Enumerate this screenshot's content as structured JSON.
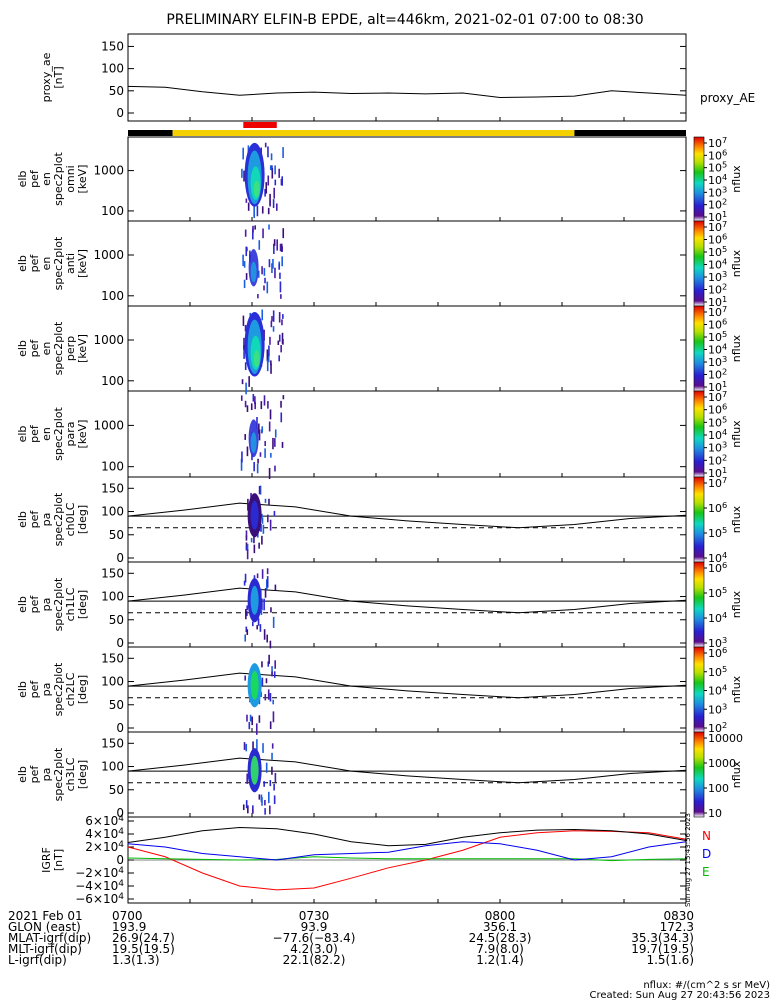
{
  "title": "PRELIMINARY ELFIN-B EPDE, alt=446km, 2021-02-01 07:00 to 08:30",
  "colors": {
    "status_black": "#000000",
    "status_yellow": "#f5d000",
    "science_red": "#ee0000",
    "igrf_n": "#ff0000",
    "igrf_e": "#00bb00",
    "igrf_d": "#0000ee"
  },
  "status_bar": {
    "description": "orbit/science-zone bar",
    "segments_hours": [
      [
        7.0,
        7.12,
        "black"
      ],
      [
        7.12,
        8.2,
        "yellow"
      ],
      [
        8.2,
        8.5,
        "black"
      ]
    ],
    "science_window": [
      7.31,
      7.4
    ]
  },
  "panels": [
    {
      "id": "ae",
      "ylabel": [
        "proxy_ae",
        "[nT]"
      ],
      "right_label": "proxy_AE",
      "yticks": [
        "150",
        "100",
        "50",
        "0"
      ]
    },
    {
      "id": "omni",
      "ylabel": [
        "elb",
        "pef",
        "en",
        "spec2plot",
        "omni",
        "[keV]"
      ],
      "yticks": [
        "1000",
        "100"
      ],
      "colorbar": {
        "ticks": [
          "10^7",
          "10^6",
          "10^5",
          "10^4",
          "10^3",
          "10^2",
          "10^1"
        ],
        "label": "nflux"
      }
    },
    {
      "id": "anti",
      "ylabel": [
        "elb",
        "pef",
        "en",
        "spec2plot",
        "anti",
        "[keV]"
      ],
      "yticks": [
        "1000",
        "100"
      ],
      "colorbar": {
        "ticks": [
          "10^7",
          "10^6",
          "10^5",
          "10^4",
          "10^3",
          "10^2",
          "10^1"
        ],
        "label": "nflux"
      }
    },
    {
      "id": "perp",
      "ylabel": [
        "elb",
        "pef",
        "en",
        "spec2plot",
        "perp",
        "[keV]"
      ],
      "yticks": [
        "1000",
        "100"
      ],
      "colorbar": {
        "ticks": [
          "10^7",
          "10^6",
          "10^5",
          "10^4",
          "10^3",
          "10^2",
          "10^1"
        ],
        "label": "nflux"
      }
    },
    {
      "id": "para",
      "ylabel": [
        "elb",
        "pef",
        "en",
        "spec2plot",
        "para",
        "[keV]"
      ],
      "yticks": [
        "1000",
        "100"
      ],
      "colorbar": {
        "ticks": [
          "10^7",
          "10^6",
          "10^5",
          "10^4",
          "10^3",
          "10^2",
          "10^1"
        ],
        "label": "nflux"
      }
    },
    {
      "id": "ch0",
      "ylabel": [
        "elb",
        "pef",
        "pa",
        "spec2plot",
        "ch0LC",
        "[deg]"
      ],
      "yticks": [
        "150",
        "100",
        "50",
        "0"
      ],
      "colorbar": {
        "ticks": [
          "10^7",
          "10^6",
          "10^5",
          "10^4"
        ],
        "label": "nflux"
      }
    },
    {
      "id": "ch1",
      "ylabel": [
        "elb",
        "pef",
        "pa",
        "spec2plot",
        "ch1LC",
        "[deg]"
      ],
      "yticks": [
        "150",
        "100",
        "50",
        "0"
      ],
      "colorbar": {
        "ticks": [
          "10^6",
          "10^5",
          "10^4",
          "10^3"
        ],
        "label": "nflux"
      }
    },
    {
      "id": "ch2",
      "ylabel": [
        "elb",
        "pef",
        "pa",
        "spec2plot",
        "ch2LC",
        "[deg]"
      ],
      "yticks": [
        "150",
        "100",
        "50",
        "0"
      ],
      "colorbar": {
        "ticks": [
          "10^6",
          "10^5",
          "10^4",
          "10^3",
          "10^2"
        ],
        "label": "nflux"
      }
    },
    {
      "id": "ch3",
      "ylabel": [
        "elb",
        "pef",
        "pa",
        "spec2plot",
        "ch3LC",
        "[deg]"
      ],
      "yticks": [
        "150",
        "100",
        "50",
        "0"
      ],
      "colorbar": {
        "ticks": [
          "10000",
          "1000",
          "100",
          "10"
        ],
        "label": "nflux"
      }
    },
    {
      "id": "igrf",
      "ylabel": [
        "IGRF",
        "[nT]"
      ],
      "yticks": [
        "6×10^4",
        "4×10^4",
        "2×10^4",
        "0",
        "−2×10^4",
        "−4×10^4",
        "−6×10^4"
      ],
      "legend": [
        "N",
        "D",
        "E"
      ]
    }
  ],
  "chart_data": {
    "type": "line",
    "x_unit": "UT hours",
    "xlim": [
      7.0,
      8.5
    ],
    "series": [
      {
        "name": "proxy_AE",
        "x": [
          7.0,
          7.1,
          7.2,
          7.3,
          7.4,
          7.5,
          7.6,
          7.7,
          7.8,
          7.9,
          8.0,
          8.1,
          8.2,
          8.3,
          8.4,
          8.5
        ],
        "values": [
          60,
          58,
          48,
          40,
          45,
          47,
          44,
          45,
          43,
          45,
          35,
          36,
          38,
          50,
          45,
          40
        ]
      },
      {
        "name": "N",
        "x": [
          7.0,
          7.1,
          7.2,
          7.3,
          7.4,
          7.5,
          7.6,
          7.7,
          7.8,
          7.9,
          8.0,
          8.1,
          8.2,
          8.3,
          8.4,
          8.5
        ],
        "values": [
          20000,
          5000,
          -20000,
          -40000,
          -46000,
          -43000,
          -28000,
          -12000,
          0,
          15000,
          35000,
          42000,
          45000,
          44000,
          42000,
          32000
        ]
      },
      {
        "name": "E",
        "x": [
          7.0,
          7.1,
          7.2,
          7.3,
          7.4,
          7.5,
          7.6,
          7.7,
          7.8,
          7.9,
          8.0,
          8.1,
          8.2,
          8.3,
          8.4,
          8.5
        ],
        "values": [
          3000,
          2000,
          1000,
          0,
          1000,
          5000,
          3000,
          2000,
          2000,
          2000,
          2000,
          2000,
          2000,
          -1000,
          1000,
          2000
        ]
      },
      {
        "name": "D",
        "x": [
          7.0,
          7.1,
          7.2,
          7.3,
          7.4,
          7.5,
          7.6,
          7.7,
          7.8,
          7.9,
          8.0,
          8.1,
          8.2,
          8.3,
          8.4,
          8.5
        ],
        "values": [
          25000,
          20000,
          10000,
          5000,
          0,
          8000,
          10000,
          12000,
          22000,
          28000,
          25000,
          15000,
          0,
          5000,
          20000,
          28000
        ]
      },
      {
        "name": "|B|",
        "x": [
          7.0,
          7.1,
          7.2,
          7.3,
          7.4,
          7.5,
          7.6,
          7.7,
          7.8,
          7.9,
          8.0,
          8.1,
          8.2,
          8.3,
          8.4,
          8.5
        ],
        "values": [
          27000,
          35000,
          45000,
          50000,
          48000,
          40000,
          28000,
          22000,
          24000,
          35000,
          42000,
          46000,
          47000,
          45000,
          40000,
          30000
        ]
      }
    ],
    "pitch_angle_lines": {
      "solid_trend_deg": [
        90,
        103,
        118,
        110,
        90,
        80,
        72,
        65,
        72,
        85,
        92
      ],
      "loss_cone_deg": 65,
      "center_deg": 90
    }
  },
  "footer": {
    "rows": [
      {
        "label": "2021 Feb 01",
        "values": [
          "0700",
          "0730",
          "0800",
          "0830"
        ]
      },
      {
        "label": "GLON (east)",
        "values": [
          "193.9",
          "93.9",
          "356.1",
          "172.3"
        ]
      },
      {
        "label": "MLAT-igrf(dip)",
        "values": [
          "26.9(24.7)",
          "−77.6(−83.4)",
          "24.5(28.3)",
          "35.3(34.3)"
        ]
      },
      {
        "label": "MLT-igrf(dip)",
        "values": [
          "19.5(19.5)",
          "4.2(3.0)",
          "7.9(8.0)",
          "19.7(19.5)"
        ]
      },
      {
        "label": "L-igrf(dip)",
        "values": [
          "1.3(1.3)",
          "22.1(82.2)",
          "1.2(1.4)",
          "1.5(1.6)"
        ]
      }
    ],
    "units_note": "nflux: #/(cm^2 s sr MeV)",
    "created": "Created: Sun Aug 27 20:43:56 2023",
    "side_stamp": "Sun Aug 27 15:43:56 2023"
  }
}
